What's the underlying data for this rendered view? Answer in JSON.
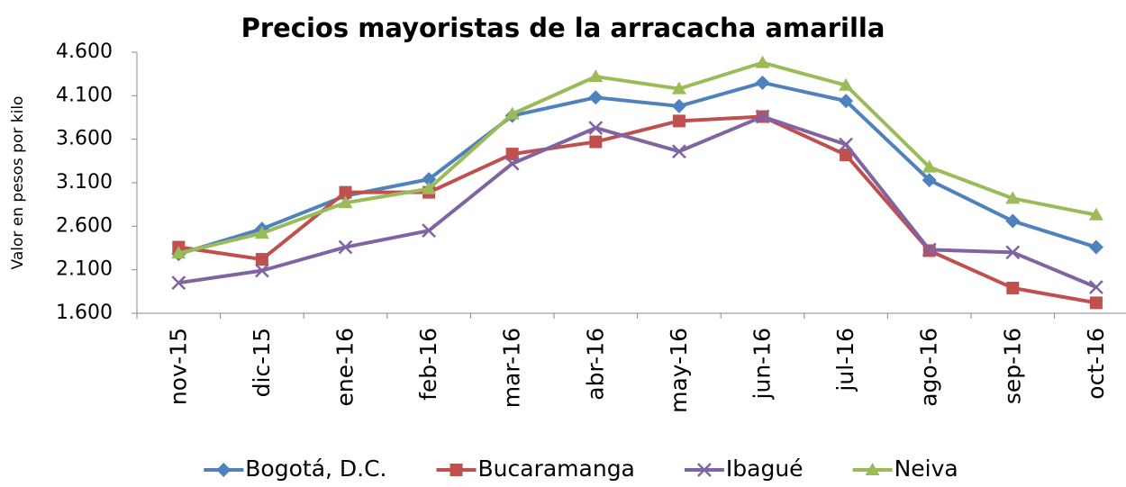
{
  "chart_data": {
    "type": "line",
    "title": "Precios mayoristas de la arracacha amarilla",
    "y_label": "Valor en pesos por kilo",
    "categories": [
      "nov-15",
      "dic-15",
      "ene-16",
      "feb-16",
      "mar-16",
      "abr-16",
      "may-16",
      "jun-16",
      "jul-16",
      "ago-16",
      "sep-16",
      "oct-16"
    ],
    "series": [
      {
        "name": "Bogotá, D.C.",
        "color": "#4f81bd",
        "marker": "diamond",
        "values": [
          2280,
          2570,
          2950,
          3140,
          3870,
          4080,
          3980,
          4250,
          4040,
          3130,
          2660,
          2360
        ]
      },
      {
        "name": "Bucaramanga",
        "color": "#c0504d",
        "marker": "square",
        "values": [
          2360,
          2220,
          2990,
          2990,
          3430,
          3570,
          3810,
          3860,
          3420,
          2320,
          1890,
          1720
        ]
      },
      {
        "name": "Ibagué",
        "color": "#8064a2",
        "marker": "x",
        "values": [
          1950,
          2090,
          2360,
          2550,
          3320,
          3730,
          3460,
          3860,
          3540,
          2330,
          2300,
          1900
        ]
      },
      {
        "name": "Neiva",
        "color": "#9bbb59",
        "marker": "triangle",
        "values": [
          2290,
          2520,
          2870,
          3030,
          3890,
          4320,
          4180,
          4480,
          4220,
          3280,
          2920,
          2730
        ]
      }
    ],
    "ylim": [
      1600,
      4600
    ],
    "yticks": [
      {
        "value": 1600,
        "label": "1.600"
      },
      {
        "value": 2100,
        "label": "2.100"
      },
      {
        "value": 2600,
        "label": "2.600"
      },
      {
        "value": 3100,
        "label": "3.100"
      },
      {
        "value": 3600,
        "label": "3.600"
      },
      {
        "value": 4100,
        "label": "4.100"
      },
      {
        "value": 4600,
        "label": "4.600"
      }
    ],
    "grid": false,
    "legend": "bottom"
  }
}
